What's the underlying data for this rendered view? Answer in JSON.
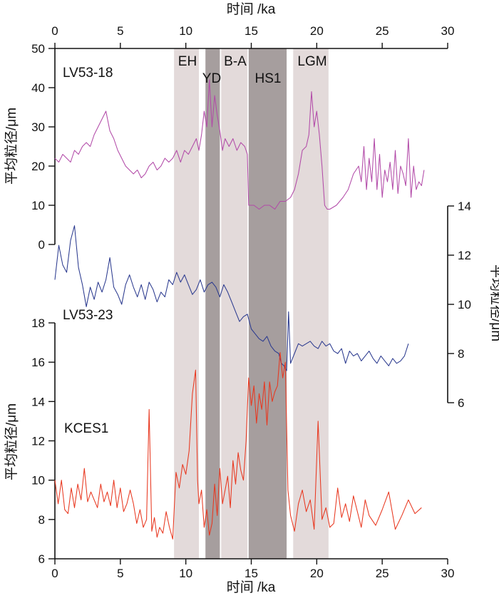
{
  "chart_data": {
    "type": "line",
    "xlabel": "时间 /ka",
    "xlim": [
      0,
      30
    ],
    "x_ticks": [
      "0",
      "5",
      "10",
      "15",
      "20",
      "25",
      "30"
    ],
    "bands": [
      {
        "label": "EH",
        "start": 9.1,
        "end": 11.0,
        "color": "#e3dada"
      },
      {
        "label": "YD",
        "start": 11.5,
        "end": 12.6,
        "color": "#a69e9e"
      },
      {
        "label": "B-A",
        "start": 12.7,
        "end": 14.7,
        "color": "#e3dada"
      },
      {
        "label": "HS1",
        "start": 14.8,
        "end": 17.7,
        "color": "#a69e9e"
      },
      {
        "label": "LGM",
        "start": 18.2,
        "end": 20.9,
        "color": "#e3dada"
      }
    ],
    "panels": [
      {
        "name": "LV53-18",
        "ylabel": "平均粒径/μm",
        "ylim": [
          0,
          50
        ],
        "y_ticks": [
          "0",
          "10",
          "20",
          "30",
          "40",
          "50"
        ],
        "color": "#b24aa8",
        "x": [
          0.0,
          0.3,
          0.6,
          0.9,
          1.2,
          1.5,
          1.8,
          2.1,
          2.4,
          2.7,
          3.0,
          3.3,
          3.6,
          3.9,
          4.2,
          4.5,
          4.8,
          5.1,
          5.4,
          5.7,
          6.0,
          6.3,
          6.6,
          6.9,
          7.2,
          7.5,
          7.8,
          8.1,
          8.4,
          8.7,
          9.0,
          9.3,
          9.6,
          9.9,
          10.2,
          10.5,
          10.8,
          11.0,
          11.2,
          11.4,
          11.6,
          11.8,
          12.0,
          12.2,
          12.4,
          12.6,
          12.8,
          13.0,
          13.3,
          13.6,
          13.9,
          14.2,
          14.5,
          14.7,
          14.8,
          15.2,
          15.6,
          16.0,
          16.4,
          16.8,
          17.2,
          17.6,
          18.0,
          18.3,
          18.6,
          18.9,
          19.2,
          19.4,
          19.6,
          19.8,
          20.0,
          20.2,
          20.4,
          20.6,
          20.8,
          21.0,
          21.5,
          22.0,
          22.4,
          22.8,
          23.2,
          23.4,
          23.6,
          23.8,
          24.0,
          24.2,
          24.4,
          24.6,
          24.8,
          25.0,
          25.2,
          25.4,
          25.6,
          25.8,
          26.0,
          26.2,
          26.4,
          26.6,
          26.8,
          27.0,
          27.2,
          27.4,
          27.6,
          27.8,
          28.0,
          28.2
        ],
        "y": [
          22,
          21,
          23,
          22,
          21,
          24,
          23,
          25,
          26,
          25,
          28,
          30,
          32,
          34,
          29,
          27,
          24,
          22,
          20,
          19,
          18,
          19,
          17,
          18,
          20,
          21,
          19,
          20,
          22,
          21,
          22,
          24,
          21,
          24,
          23,
          25,
          27,
          24,
          28,
          34,
          30,
          42,
          30,
          38,
          33,
          29,
          24,
          27,
          25,
          27,
          24,
          26,
          25,
          23,
          10,
          10,
          9,
          10,
          10,
          9,
          11,
          11,
          12,
          14,
          18,
          24,
          25,
          28,
          39,
          30,
          34,
          28,
          20,
          10,
          9,
          9,
          10,
          12,
          14,
          18,
          20,
          16,
          25,
          14,
          22,
          16,
          27,
          14,
          23,
          12,
          19,
          16,
          21,
          14,
          24,
          13,
          20,
          18,
          15,
          27,
          12,
          20,
          14,
          16,
          15,
          19
        ]
      },
      {
        "name": "LV53-23",
        "ylabel": "平均粒径/μm",
        "ylim": [
          6,
          14
        ],
        "y_ticks": [
          "6",
          "8",
          "10",
          "12",
          "14"
        ],
        "color": "#2b3a8f",
        "x": [
          0.0,
          0.3,
          0.6,
          0.9,
          1.2,
          1.5,
          1.8,
          2.1,
          2.4,
          2.7,
          3.0,
          3.3,
          3.6,
          3.9,
          4.2,
          4.5,
          4.8,
          5.1,
          5.4,
          5.7,
          6.0,
          6.3,
          6.6,
          6.9,
          7.2,
          7.5,
          7.8,
          8.1,
          8.4,
          8.7,
          9.0,
          9.3,
          9.6,
          9.9,
          10.2,
          10.5,
          10.8,
          11.1,
          11.4,
          11.7,
          12.0,
          12.3,
          12.6,
          12.9,
          13.2,
          13.5,
          13.8,
          14.1,
          14.4,
          14.7,
          15.0,
          15.3,
          15.6,
          15.9,
          16.2,
          16.5,
          16.8,
          17.1,
          17.3,
          17.5,
          17.7,
          17.85,
          18.0,
          18.3,
          18.6,
          18.9,
          19.2,
          19.5,
          19.8,
          20.1,
          20.4,
          20.7,
          21.0,
          21.3,
          21.6,
          21.9,
          22.2,
          22.5,
          22.8,
          23.1,
          23.4,
          23.7,
          24.0,
          24.3,
          24.6,
          24.9,
          25.2,
          25.5,
          25.8,
          26.1,
          26.4,
          26.7,
          27.0
        ],
        "y": [
          11.0,
          12.4,
          11.6,
          11.3,
          12.6,
          13.2,
          11.5,
          10.8,
          9.9,
          10.7,
          10.2,
          10.9,
          10.5,
          11.0,
          11.9,
          10.7,
          10.4,
          10.0,
          10.8,
          11.2,
          10.7,
          10.3,
          10.8,
          10.2,
          10.9,
          10.6,
          10.1,
          10.5,
          10.3,
          11.0,
          10.8,
          11.3,
          10.9,
          11.2,
          10.8,
          10.4,
          10.6,
          11.0,
          10.5,
          10.8,
          10.9,
          10.7,
          10.3,
          10.8,
          10.5,
          10.1,
          9.7,
          9.3,
          9.5,
          9.6,
          9.0,
          8.8,
          8.6,
          8.5,
          8.7,
          8.3,
          8.1,
          8.0,
          7.6,
          7.5,
          7.3,
          9.7,
          7.6,
          8.0,
          8.4,
          8.3,
          8.4,
          8.5,
          8.3,
          8.2,
          8.5,
          8.3,
          8.4,
          8.1,
          8.0,
          8.2,
          7.6,
          8.1,
          7.9,
          8.0,
          7.7,
          7.9,
          8.1,
          7.8,
          7.6,
          7.9,
          7.7,
          7.5,
          7.8,
          7.6,
          7.7,
          7.9,
          8.4
        ]
      },
      {
        "name": "KCES1",
        "ylabel": "平均粒径/μm",
        "ylim": [
          6,
          18
        ],
        "y_ticks": [
          "6",
          "8",
          "10",
          "12",
          "14",
          "16",
          "18"
        ],
        "color": "#e8371f",
        "x": [
          0.0,
          0.25,
          0.5,
          0.75,
          1.0,
          1.25,
          1.5,
          1.75,
          2.0,
          2.25,
          2.5,
          2.75,
          3.0,
          3.25,
          3.5,
          3.75,
          4.0,
          4.25,
          4.5,
          4.75,
          5.0,
          5.25,
          5.5,
          5.75,
          6.0,
          6.25,
          6.5,
          6.75,
          7.0,
          7.2,
          7.4,
          7.6,
          7.8,
          8.0,
          8.25,
          8.5,
          8.75,
          9.0,
          9.25,
          9.5,
          9.75,
          10.0,
          10.25,
          10.5,
          10.75,
          10.9,
          11.0,
          11.2,
          11.4,
          11.6,
          11.8,
          12.0,
          12.2,
          12.4,
          12.6,
          12.8,
          13.0,
          13.2,
          13.4,
          13.6,
          13.8,
          14.0,
          14.2,
          14.4,
          14.6,
          14.8,
          15.0,
          15.2,
          15.4,
          15.6,
          15.8,
          16.0,
          16.2,
          16.4,
          16.6,
          16.8,
          17.0,
          17.2,
          17.4,
          17.6,
          17.8,
          18.0,
          18.3,
          18.6,
          18.9,
          19.2,
          19.5,
          19.8,
          20.1,
          20.4,
          20.7,
          21.0,
          21.3,
          21.6,
          21.9,
          22.2,
          22.5,
          22.8,
          23.1,
          23.4,
          23.7,
          24.0,
          24.5,
          25.0,
          25.5,
          26.0,
          26.5,
          27.0,
          27.5,
          28.0
        ],
        "y": [
          10.0,
          8.8,
          10.0,
          8.5,
          8.3,
          9.6,
          8.6,
          9.8,
          9.0,
          10.6,
          8.9,
          9.4,
          9.0,
          8.6,
          9.8,
          8.9,
          9.4,
          8.7,
          10.0,
          8.6,
          9.6,
          8.4,
          8.8,
          9.5,
          8.8,
          7.8,
          8.5,
          7.6,
          8.0,
          13.6,
          7.4,
          8.1,
          7.1,
          7.6,
          7.3,
          8.4,
          7.6,
          7.0,
          10.4,
          9.6,
          10.8,
          10.3,
          11.5,
          14.4,
          15.6,
          10.0,
          8.8,
          9.5,
          7.6,
          8.5,
          7.2,
          7.8,
          9.8,
          8.2,
          10.6,
          8.8,
          9.5,
          10.2,
          8.6,
          11.0,
          9.8,
          11.4,
          10.5,
          10.0,
          12.0,
          15.2,
          13.8,
          14.8,
          12.9,
          14.4,
          13.6,
          15.0,
          12.8,
          15.0,
          14.0,
          14.5,
          14.8,
          16.5,
          15.2,
          16.0,
          9.5,
          8.2,
          7.4,
          8.8,
          9.5,
          8.4,
          9.0,
          7.5,
          13.0,
          8.0,
          8.6,
          7.6,
          7.8,
          9.6,
          8.1,
          8.8,
          7.9,
          9.2,
          8.4,
          7.6,
          9.0,
          8.2,
          7.7,
          8.5,
          9.4,
          7.5,
          8.2,
          9.0,
          8.3,
          8.6
        ]
      }
    ]
  }
}
